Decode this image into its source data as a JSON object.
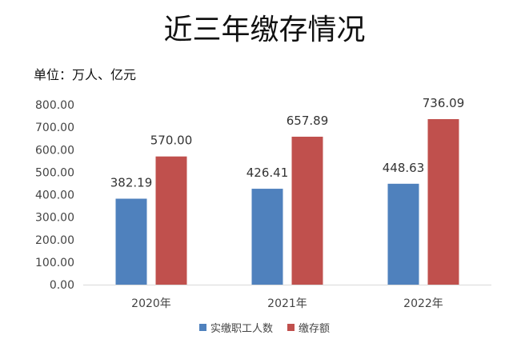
{
  "chart_data": {
    "type": "bar",
    "title": "近三年缴存情况",
    "subtitle": "单位：万人、亿元",
    "categories": [
      "2020年",
      "2021年",
      "2022年"
    ],
    "series": [
      {
        "name": "实缴职工人数",
        "values": [
          382.19,
          426.41,
          448.63
        ],
        "color": "#4f81bd"
      },
      {
        "name": "缴存额",
        "values": [
          570.0,
          657.89,
          736.09
        ],
        "color": "#c0504d"
      }
    ],
    "ylim": [
      0,
      800
    ],
    "yticks": [
      "0.00",
      "100.00",
      "200.00",
      "300.00",
      "400.00",
      "500.00",
      "600.00",
      "700.00",
      "800.00"
    ],
    "grid": false,
    "legend_position": "bottom"
  }
}
